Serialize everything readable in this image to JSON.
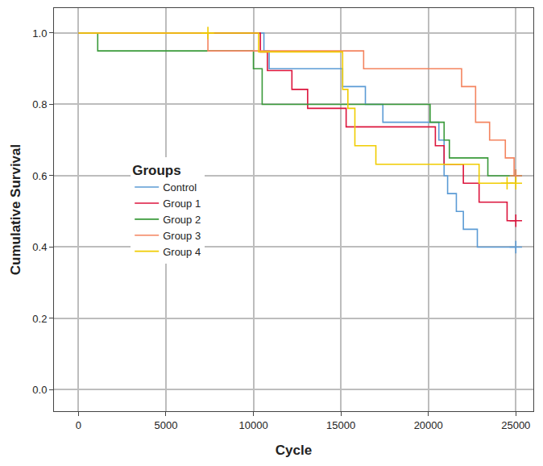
{
  "chart_data": {
    "type": "line",
    "line_style": "step",
    "x_label": "Cycle",
    "y_label": "Cumulative Survival",
    "legend_title": "Groups",
    "legend": "left",
    "grid": true,
    "xlim": [
      -1400,
      26000
    ],
    "xticks": [
      0,
      5000,
      10000,
      15000,
      20000,
      25000
    ],
    "ylim": [
      -0.06,
      1.07
    ],
    "yticks": [
      {
        "value": 0,
        "label": "0.0"
      },
      0.2,
      0.4,
      0.6,
      0.8,
      {
        "value": 1,
        "label": "1.0"
      }
    ],
    "series": [
      {
        "name": "Control",
        "color": "#5b9bd5",
        "x": [
          0,
          10600,
          10900,
          15100,
          16400,
          17400,
          20600,
          20900,
          21100,
          21600,
          22000,
          22800,
          25000
        ],
        "values": [
          1,
          0.95,
          0.9,
          0.85,
          0.8,
          0.75,
          0.7,
          0.6,
          0.55,
          0.5,
          0.45,
          0.4,
          0.4
        ],
        "censored": {
          "x": [
            25000
          ],
          "y": [
            0.4
          ]
        }
      },
      {
        "name": "Group 1",
        "color": "#dc143c",
        "x": [
          0,
          10400,
          10800,
          12200,
          13100,
          15300,
          20400,
          20900,
          22000,
          22900,
          24500,
          25000
        ],
        "values": [
          1,
          0.947,
          0.895,
          0.842,
          0.789,
          0.737,
          0.684,
          0.632,
          0.579,
          0.526,
          0.474,
          0.474
        ],
        "censored": {
          "x": [
            25000
          ],
          "y": [
            0.474
          ]
        }
      },
      {
        "name": "Group 2",
        "color": "#3a9a3a",
        "x": [
          0,
          1100,
          10000,
          10500,
          20100,
          20900,
          21200,
          23400,
          25000
        ],
        "values": [
          1,
          0.95,
          0.9,
          0.8,
          0.75,
          0.7,
          0.65,
          0.6,
          0.6
        ],
        "censored": {
          "x": [
            25000
          ],
          "y": [
            0.6
          ]
        }
      },
      {
        "name": "Group 3",
        "color": "#f4845f",
        "x": [
          0,
          7400,
          16300,
          21900,
          22700,
          23500,
          24400,
          24900,
          25000
        ],
        "values": [
          1,
          0.95,
          0.9,
          0.85,
          0.75,
          0.7,
          0.65,
          0.6,
          0.6
        ],
        "censored": {
          "x": [
            25000
          ],
          "y": [
            0.6
          ]
        }
      },
      {
        "name": "Group 4",
        "color": "#f0cc00",
        "x": [
          0,
          10300,
          15100,
          15400,
          15800,
          17000,
          22900,
          25000
        ],
        "values": [
          1,
          0.947,
          0.842,
          0.789,
          0.684,
          0.632,
          0.579,
          0.579
        ],
        "censored": {
          "x": [
            7400,
            24500,
            25000
          ],
          "y": [
            1,
            0.579,
            0.579
          ]
        }
      }
    ]
  }
}
